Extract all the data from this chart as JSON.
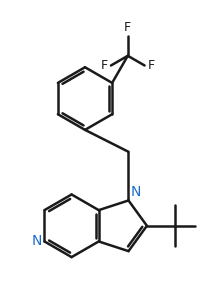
{
  "background_color": "#ffffff",
  "line_color": "#1a1a1a",
  "nitrogen_color": "#1a6bcc",
  "line_width": 1.8,
  "font_size": 10,
  "fig_width": 2.17,
  "fig_height": 2.95,
  "dpi": 100,
  "xlim": [
    -0.5,
    10.5
  ],
  "ylim": [
    -0.5,
    14.5
  ]
}
